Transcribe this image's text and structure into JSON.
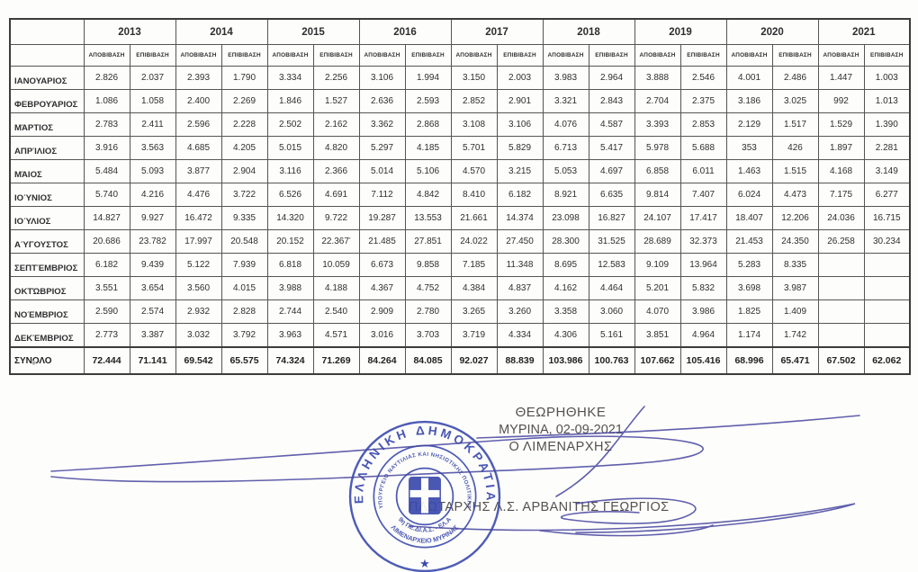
{
  "table": {
    "years": [
      "2013",
      "2014",
      "2015",
      "2016",
      "2017",
      "2018",
      "2019",
      "2020",
      "2021"
    ],
    "sub_headers": [
      "ΑΠΟΒΙΒΑΣΗ",
      "ΕΠΙΒΙΒΑΣΗ"
    ],
    "rows": [
      {
        "label": "ΙΑΝΟΥΑΡΙΟΣ",
        "values": [
          "2.826",
          "2.037",
          "2.393",
          "1.790",
          "3.334",
          "2.256",
          "3.106",
          "1.994",
          "3.150",
          "2.003",
          "3.983",
          "2.964",
          "3.888",
          "2.546",
          "4.001",
          "2.486",
          "1.447",
          "1.003"
        ]
      },
      {
        "label": "ΦΕΒΡΟΥΆΡΙΟΣ",
        "values": [
          "1.086",
          "1.058",
          "2.400",
          "2.269",
          "1.846",
          "1.527",
          "2.636",
          "2.593",
          "2.852",
          "2.901",
          "3.321",
          "2.843",
          "2.704",
          "2.375",
          "3.186",
          "3.025",
          "992",
          "1.013"
        ]
      },
      {
        "label": "ΜΆΡΤΙΟΣ",
        "values": [
          "2.783",
          "2.411",
          "2.596",
          "2.228",
          "2.502",
          "2.162",
          "3.362",
          "2.868",
          "3.108",
          "3.106",
          "4.076",
          "4.587",
          "3.393",
          "2.853",
          "2.129",
          "1.517",
          "1.529",
          "1.390"
        ]
      },
      {
        "label": "ΑΠΡΊΛΙΟΣ",
        "values": [
          "3.916",
          "3.563",
          "4.685",
          "4.205",
          "5.015",
          "4.820",
          "5.297",
          "4.185",
          "5.701",
          "5.829",
          "6.713",
          "5.417",
          "5.978",
          "5.688",
          "353",
          "426",
          "1.897",
          "2.281"
        ]
      },
      {
        "label": "ΜΆΙΟΣ",
        "values": [
          "5.484",
          "5.093",
          "3.877",
          "2.904",
          "3.116",
          "2.366",
          "5.014",
          "5.106",
          "4.570",
          "3.215",
          "5.053",
          "4.697",
          "6.858",
          "6.011",
          "1.463",
          "1.515",
          "4.168",
          "3.149"
        ]
      },
      {
        "label": "ΙΟΎΝΙΟΣ",
        "values": [
          "5.740",
          "4.216",
          "4.476",
          "3.722",
          "6.526",
          "4.691",
          "7.112",
          "4.842",
          "8.410",
          "6.182",
          "8.921",
          "6.635",
          "9.814",
          "7.407",
          "6.024",
          "4.473",
          "7.175",
          "6.277"
        ]
      },
      {
        "label": "ΙΟΎΛΙΟΣ",
        "values": [
          "14.827",
          "9.927",
          "16.472",
          "9.335",
          "14.320",
          "9.722",
          "19.287",
          "13.553",
          "21.661",
          "14.374",
          "23.098",
          "16.827",
          "24.107",
          "17.417",
          "18.407",
          "12.206",
          "24.036",
          "16.715"
        ]
      },
      {
        "label": "ΑΎΓΟΥΣΤΟΣ",
        "values": [
          "20.686",
          "23.782",
          "17.997",
          "20.548",
          "20.152",
          "22.367",
          "21.485",
          "27.851",
          "24.022",
          "27.450",
          "28.300",
          "31.525",
          "28.689",
          "32.373",
          "21.453",
          "24.350",
          "26.258",
          "30.234"
        ]
      },
      {
        "label": "ΣΕΠΤΈΜΒΡΙΟΣ",
        "values": [
          "6.182",
          "9.439",
          "5.122",
          "7.939",
          "6.818",
          "10.059",
          "6.673",
          "9.858",
          "7.185",
          "11.348",
          "8.695",
          "12.583",
          "9.109",
          "13.964",
          "5.283",
          "8.335",
          "",
          ""
        ]
      },
      {
        "label": "ΟΚΤΏΒΡΙΟΣ",
        "values": [
          "3.551",
          "3.654",
          "3.560",
          "4.015",
          "3.988",
          "4.188",
          "4.367",
          "4.752",
          "4.384",
          "4.837",
          "4.162",
          "4.464",
          "5.201",
          "5.832",
          "3.698",
          "3.987",
          "",
          ""
        ]
      },
      {
        "label": "ΝΟΈΜΒΡΙΟΣ",
        "values": [
          "2.590",
          "2.574",
          "2.932",
          "2.828",
          "2.744",
          "2.540",
          "2.909",
          "2.780",
          "3.265",
          "3.260",
          "3.358",
          "3.060",
          "4.070",
          "3.986",
          "1.825",
          "1.409",
          "",
          ""
        ]
      },
      {
        "label": "ΔΕΚΈΜΒΡΙΟΣ",
        "values": [
          "2.773",
          "3.387",
          "3.032",
          "3.792",
          "3.963",
          "4.571",
          "3.016",
          "3.703",
          "3.719",
          "4.334",
          "4.306",
          "5.161",
          "3.851",
          "4.964",
          "1.174",
          "1.742",
          "",
          ""
        ]
      }
    ],
    "total_row": {
      "label": "ΣΥΝΟΛΟ",
      "values": [
        "72.444",
        "71.141",
        "69.542",
        "65.575",
        "74.324",
        "71.269",
        "84.264",
        "84.085",
        "92.027",
        "88.839",
        "103.986",
        "100.763",
        "107.662",
        "105.416",
        "68.996",
        "65.471",
        "67.502",
        "62.062"
      ]
    },
    "stray_mark": {
      "row_index": 7,
      "value_index": 5,
      "glyph": "’"
    }
  },
  "approval": {
    "line1": "ΘΕΩΡΗΘΗΚΕ",
    "line2": "ΜΥΡΙΝΑ, 02-09-2021",
    "line3": "Ο ΛΙΜΕΝΑΡΧΗΣ",
    "signatory": "ΠΛΩΤΑΡΧΗΣ Λ.Σ. ΑΡΒΑΝΙΤΗΣ ΓΕΩΡΓΙΟΣ"
  },
  "stamp": {
    "outer_text": "ΕΛΛΗΝΙΚΗ ΔΗΜΟΚΡΑΤΙΑ",
    "ministry_text": "ΥΠΟΥΡΓΕΙΟ ΝΑΥΤΙΛΙΑΣ ΚΑΙ ΝΗΣΙΩΤΙΚΗΣ ΠΟΛΙΤΙΚΗΣ",
    "unit_text": "9η ΠΕ.ΔΙ.Α.Σ. - ΕΛ.Α",
    "office_text": "ΛΙΜΕΝΑΡΧΕΙΟ ΜΥΡΙΝΑΣ",
    "star_glyph": "★"
  },
  "colors": {
    "stamp_blue": "#3b4aad",
    "signature_blue": "#45449f",
    "ink": "#333333",
    "approval_text": "#54504d"
  }
}
